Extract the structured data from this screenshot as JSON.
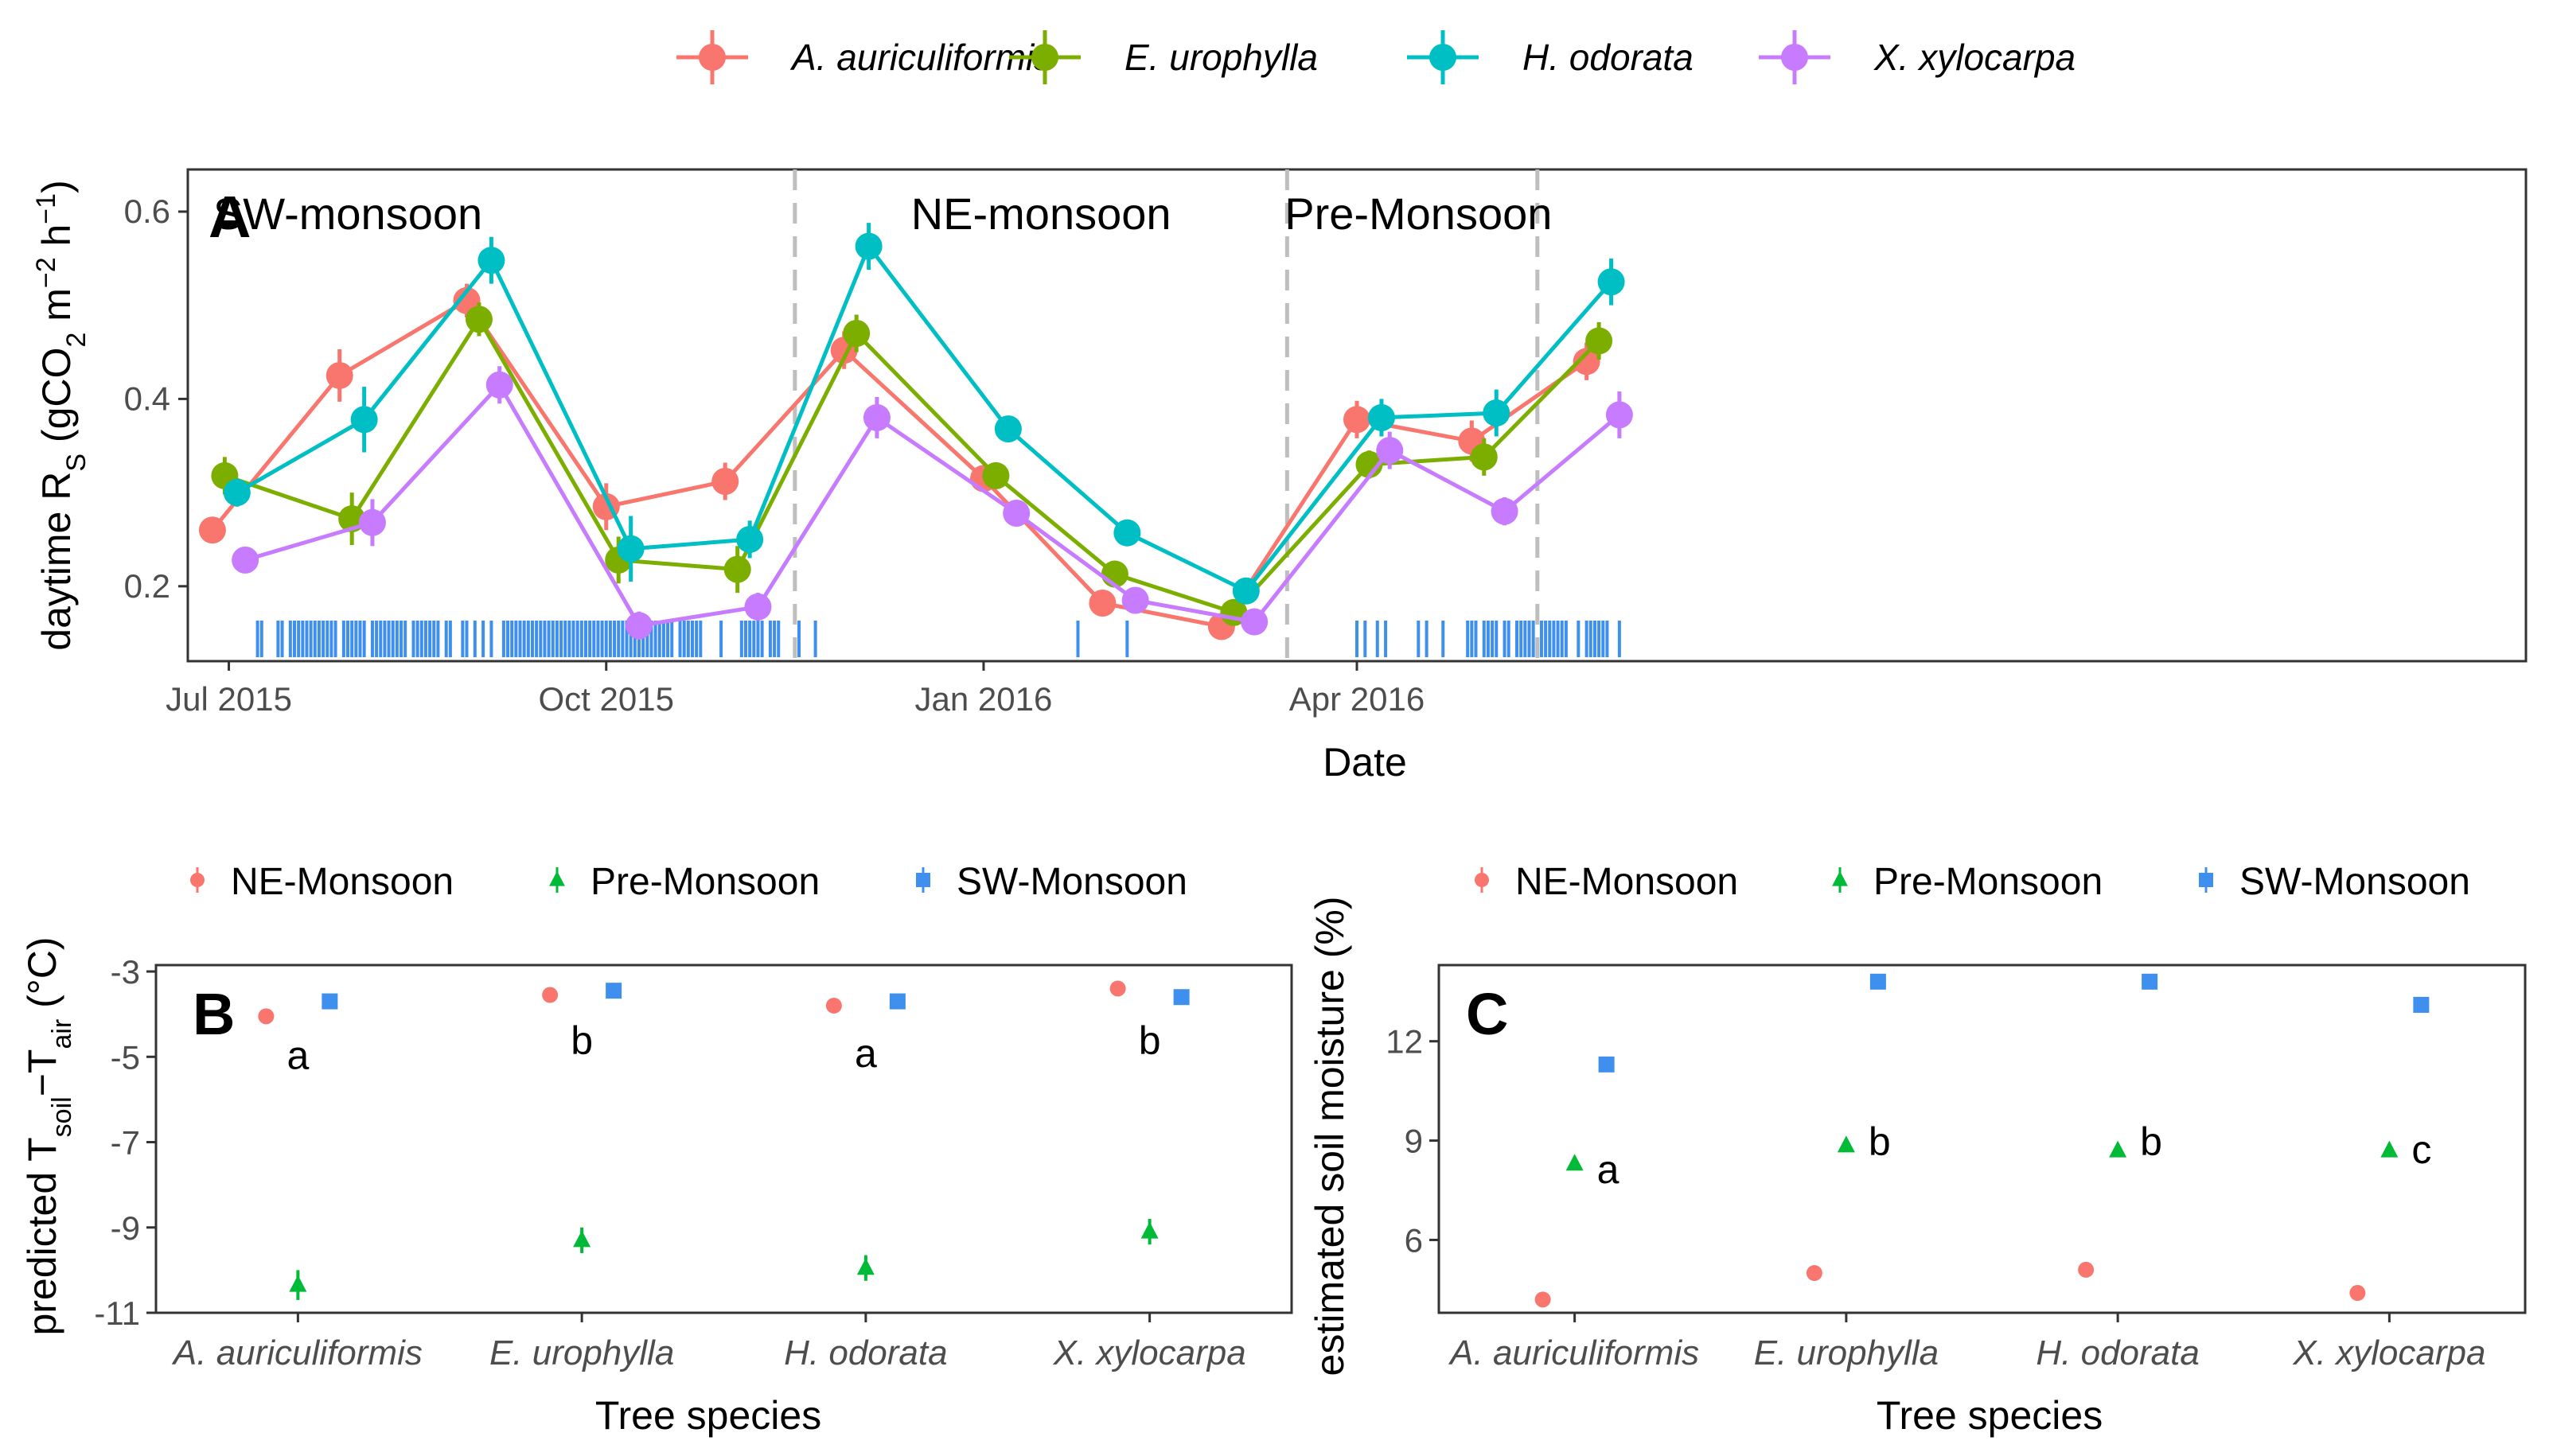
{
  "colors": {
    "A. auriculiformis": "#F8766D",
    "E. urophylla": "#7CAE00",
    "H. odorata": "#00BFC4",
    "X. xylocarpa": "#C77CFF",
    "NE-Monsoon": "#F8766D",
    "Pre-Monsoon": "#00BA38",
    "SW-Monsoon": "#3F8FEF",
    "rug": "#3F8FEF",
    "divider": "#BEBEBE"
  },
  "chart_data": [
    {
      "id": "A",
      "type": "line",
      "panel_label": "A",
      "legend": [
        "A. auriculiformis",
        "E. urophylla",
        "H. odorata",
        "X. xylocarpa"
      ],
      "xlabel": "Date",
      "ylabel": "daytime R",
      "ylabel_sub": "S",
      "ylabel_unit": " (gCO",
      "ylabel_unit_sub": "2",
      "ylabel_unit2": " m",
      "ylabel_exp1": "−2",
      "ylabel_unit3": " h",
      "ylabel_exp2": "−1",
      "ylabel_close": ")",
      "xlim": [
        -10,
        560
      ],
      "ylim": [
        0.12,
        0.645
      ],
      "x_ticks": [
        {
          "day": 0,
          "label": "Jul 2015"
        },
        {
          "day": 92,
          "label": "Oct 2015"
        },
        {
          "day": 184,
          "label": "Jan 2016"
        },
        {
          "day": 275,
          "label": "Apr 2016"
        }
      ],
      "y_ticks": [
        {
          "value": 0.2,
          "label": "0.2"
        },
        {
          "value": 0.4,
          "label": "0.4"
        },
        {
          "value": 0.6,
          "label": "0.6"
        }
      ],
      "season_dividers": [
        138,
        258,
        319
      ],
      "season_labels": [
        {
          "label": "SW-monsoon",
          "day": 29
        },
        {
          "label": "NE-monsoon",
          "day": 198
        },
        {
          "label": "Pre-Monsoon",
          "day": 290
        }
      ],
      "series": [
        {
          "name": "A. auriculiformis",
          "x": [
            -4,
            27,
            58,
            92,
            121,
            150,
            184,
            213,
            242,
            275,
            303,
            331
          ],
          "y": [
            0.26,
            0.425,
            0.505,
            0.285,
            0.312,
            0.452,
            0.315,
            0.182,
            0.157,
            0.378,
            0.355,
            0.44
          ],
          "err": [
            0.012,
            0.028,
            0.018,
            0.025,
            0.02,
            0.02,
            0.014,
            0.012,
            0.01,
            0.02,
            0.022,
            0.02
          ]
        },
        {
          "name": "E. urophylla",
          "x": [
            -1,
            30,
            61,
            95,
            124,
            153,
            187,
            216,
            245,
            278,
            306,
            334
          ],
          "y": [
            0.318,
            0.272,
            0.485,
            0.228,
            0.218,
            0.47,
            0.318,
            0.213,
            0.172,
            0.33,
            0.338,
            0.462
          ],
          "err": [
            0.02,
            0.028,
            0.018,
            0.025,
            0.025,
            0.02,
            0.014,
            0.012,
            0.01,
            0.015,
            0.02,
            0.02
          ]
        },
        {
          "name": "H. odorata",
          "x": [
            2,
            33,
            64,
            98,
            127,
            156,
            190,
            219,
            248,
            281,
            309,
            337
          ],
          "y": [
            0.3,
            0.378,
            0.548,
            0.24,
            0.25,
            0.563,
            0.368,
            0.257,
            0.195,
            0.38,
            0.385,
            0.525
          ],
          "err": [
            0.015,
            0.035,
            0.025,
            0.035,
            0.02,
            0.025,
            0.014,
            0.012,
            0.01,
            0.02,
            0.025,
            0.025
          ]
        },
        {
          "name": "X. xylocarpa",
          "x": [
            4,
            35,
            66,
            100,
            129,
            158,
            192,
            221,
            250,
            283,
            311,
            339
          ],
          "y": [
            0.228,
            0.268,
            0.415,
            0.158,
            0.178,
            0.38,
            0.278,
            0.185,
            0.162,
            0.345,
            0.28,
            0.383
          ],
          "err": [
            0.012,
            0.025,
            0.02,
            0.015,
            0.015,
            0.022,
            0.014,
            0.012,
            0.01,
            0.02,
            0.015,
            0.025
          ]
        }
      ],
      "rug_days": [
        7,
        8,
        12,
        13,
        15,
        16,
        17,
        18,
        19,
        20,
        21,
        22,
        23,
        24,
        25,
        26,
        28,
        29,
        30,
        31,
        32,
        33,
        35,
        36,
        37,
        38,
        39,
        40,
        41,
        42,
        43,
        45,
        46,
        47,
        48,
        49,
        50,
        51,
        53,
        54,
        57,
        58,
        60,
        62,
        64,
        67,
        68,
        69,
        70,
        71,
        72,
        73,
        74,
        75,
        76,
        77,
        78,
        79,
        80,
        81,
        82,
        83,
        84,
        85,
        86,
        87,
        88,
        89,
        90,
        91,
        92,
        93,
        94,
        95,
        96,
        97,
        98,
        99,
        100,
        101,
        102,
        103,
        104,
        105,
        106,
        107,
        108,
        110,
        111,
        112,
        113,
        114,
        115,
        120,
        125,
        126,
        127,
        128,
        129,
        130,
        132,
        133,
        134,
        139,
        143,
        207,
        219,
        275,
        277,
        280,
        282,
        290,
        292,
        296,
        302,
        303,
        304,
        306,
        307,
        308,
        309,
        311,
        312,
        314,
        315,
        316,
        317,
        318,
        320,
        321,
        322,
        323,
        324,
        325,
        326,
        329,
        331,
        332,
        333,
        334,
        335,
        336,
        339
      ]
    },
    {
      "id": "B",
      "type": "scatter",
      "panel_label": "B",
      "legend": [
        "NE-Monsoon",
        "Pre-Monsoon",
        "SW-Monsoon"
      ],
      "xlabel": "Tree species",
      "ylabel": "predicted T",
      "ylabel_sub1": "soil",
      "ylabel_mid": "−T",
      "ylabel_sub2": "air",
      "ylabel_unit": " (°C)",
      "categories": [
        "A. auriculiformis",
        "E. urophylla",
        "H. odorata",
        "X. xylocarpa"
      ],
      "ylim": [
        -11,
        -2.85
      ],
      "y_ticks": [
        -3,
        -5,
        -7,
        -9,
        -11
      ],
      "series": [
        {
          "name": "NE-Monsoon",
          "shape": "circle",
          "values": [
            -4.05,
            -3.55,
            -3.8,
            -3.4
          ],
          "err": [
            0.08,
            0.08,
            0.08,
            0.08
          ]
        },
        {
          "name": "Pre-Monsoon",
          "shape": "triangle",
          "values": [
            -10.35,
            -9.3,
            -9.95,
            -9.1
          ],
          "err": [
            0.35,
            0.3,
            0.3,
            0.3
          ]
        },
        {
          "name": "SW-Monsoon",
          "shape": "square",
          "values": [
            -3.7,
            -3.45,
            -3.7,
            -3.6
          ],
          "err": [
            0.1,
            0.1,
            0.1,
            0.1
          ]
        }
      ],
      "annotations": [
        {
          "category": 0,
          "y": -4.95,
          "text": "a"
        },
        {
          "category": 1,
          "y": -4.6,
          "text": "b"
        },
        {
          "category": 2,
          "y": -4.9,
          "text": "a"
        },
        {
          "category": 3,
          "y": -4.6,
          "text": "b"
        }
      ]
    },
    {
      "id": "C",
      "type": "scatter",
      "panel_label": "C",
      "legend": [
        "NE-Monsoon",
        "Pre-Monsoon",
        "SW-Monsoon"
      ],
      "xlabel": "Tree species",
      "ylabel": "estimated soil moisture (%)",
      "categories": [
        "A. auriculiformis",
        "E. urophylla",
        "H. odorata",
        "X. xylocarpa"
      ],
      "ylim": [
        3.8,
        14.3
      ],
      "y_ticks": [
        6,
        9,
        12
      ],
      "series": [
        {
          "name": "NE-Monsoon",
          "shape": "circle",
          "values": [
            4.2,
            5.0,
            5.1,
            4.4
          ],
          "err": [
            0.05,
            0.05,
            0.05,
            0.05
          ]
        },
        {
          "name": "Pre-Monsoon",
          "shape": "triangle",
          "values": [
            8.3,
            8.85,
            8.7,
            8.7
          ],
          "err": [
            0.15,
            0.15,
            0.15,
            0.15
          ]
        },
        {
          "name": "SW-Monsoon",
          "shape": "square",
          "values": [
            11.3,
            13.8,
            13.8,
            13.1
          ],
          "err": [
            0.15,
            0.2,
            0.2,
            0.2
          ]
        }
      ],
      "annotations": [
        {
          "category": 0,
          "y": 8.0,
          "text": "a"
        },
        {
          "category": 1,
          "y": 8.85,
          "text": "b"
        },
        {
          "category": 2,
          "y": 8.85,
          "text": "b"
        },
        {
          "category": 3,
          "y": 8.6,
          "text": "c"
        }
      ]
    }
  ]
}
